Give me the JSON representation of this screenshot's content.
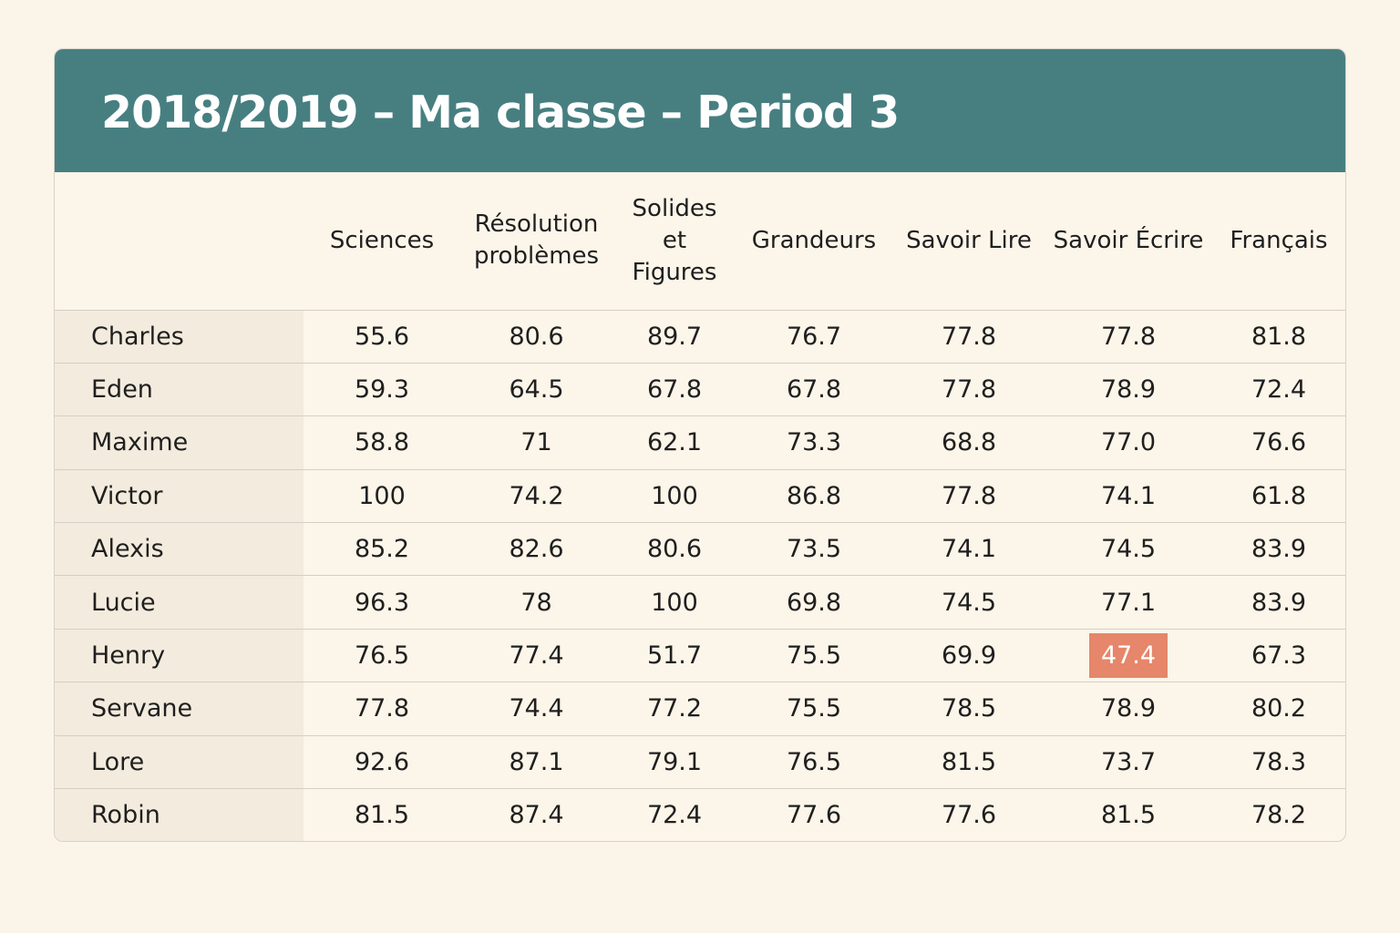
{
  "title": "2018/2019 – Ma classe – Period 3",
  "columns": [
    "Sciences",
    "Résolution problèmes",
    "Solides et Figures",
    "Grandeurs",
    "Savoir Lire",
    "Savoir Écrire",
    "Français"
  ],
  "rows": [
    {
      "name": "Charles",
      "scores": [
        "55.6",
        "80.6",
        "89.7",
        "76.7",
        "77.8",
        "77.8",
        "81.8"
      ]
    },
    {
      "name": "Eden",
      "scores": [
        "59.3",
        "64.5",
        "67.8",
        "67.8",
        "77.8",
        "78.9",
        "72.4"
      ]
    },
    {
      "name": "Maxime",
      "scores": [
        "58.8",
        "71",
        "62.1",
        "73.3",
        "68.8",
        "77.0",
        "76.6"
      ]
    },
    {
      "name": "Victor",
      "scores": [
        "100",
        "74.2",
        "100",
        "86.8",
        "77.8",
        "74.1",
        "61.8"
      ]
    },
    {
      "name": "Alexis",
      "scores": [
        "85.2",
        "82.6",
        "80.6",
        "73.5",
        "74.1",
        "74.5",
        "83.9"
      ]
    },
    {
      "name": "Lucie",
      "scores": [
        "96.3",
        "78",
        "100",
        "69.8",
        "74.5",
        "77.1",
        "83.9"
      ]
    },
    {
      "name": "Henry",
      "scores": [
        "76.5",
        "77.4",
        "51.7",
        "75.5",
        "69.9",
        "47.4",
        "67.3"
      ]
    },
    {
      "name": "Servane",
      "scores": [
        "77.8",
        "74.4",
        "77.2",
        "75.5",
        "78.5",
        "78.9",
        "80.2"
      ]
    },
    {
      "name": "Lore",
      "scores": [
        "92.6",
        "87.1",
        "79.1",
        "76.5",
        "81.5",
        "73.7",
        "78.3"
      ]
    },
    {
      "name": "Robin",
      "scores": [
        "81.5",
        "87.4",
        "72.4",
        "77.6",
        "77.6",
        "81.5",
        "78.2"
      ]
    }
  ],
  "highlight": {
    "row": 6,
    "col": 5,
    "color": "#e6866a"
  },
  "colors": {
    "header_bg": "#477f81",
    "page_bg": "#fbf4e8",
    "name_col_bg": "#f3ebdd"
  }
}
